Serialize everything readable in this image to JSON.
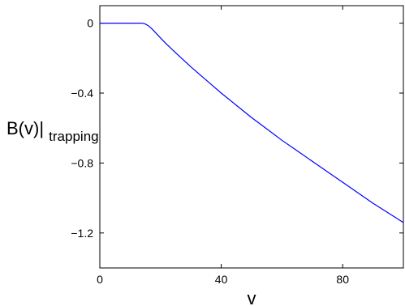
{
  "chart_data": {
    "type": "line",
    "title": "",
    "xlabel": "v",
    "ylabel_main": "B(v)|",
    "ylabel_sub": "trapping",
    "xlim": [
      0,
      100
    ],
    "ylim": [
      -1.4,
      0.1
    ],
    "xticks": [
      0,
      40,
      80
    ],
    "xtick_labels": [
      "0",
      "40",
      "80"
    ],
    "yticks": [
      0,
      -0.4,
      -0.8,
      -1.2
    ],
    "ytick_labels": [
      "0",
      "−0.4",
      "−0.8",
      "−1.2"
    ],
    "grid": false,
    "legend": "none",
    "series": [
      {
        "color": "#0000ff",
        "x": [
          0,
          5,
          10,
          14,
          15,
          16,
          17,
          18,
          20,
          22,
          25,
          30,
          35,
          40,
          45,
          50,
          55,
          60,
          65,
          70,
          75,
          80,
          85,
          90,
          95,
          100
        ],
        "y": [
          0,
          0,
          0,
          0,
          -0.005,
          -0.015,
          -0.03,
          -0.048,
          -0.085,
          -0.12,
          -0.17,
          -0.25,
          -0.325,
          -0.4,
          -0.47,
          -0.54,
          -0.605,
          -0.67,
          -0.73,
          -0.79,
          -0.85,
          -0.91,
          -0.97,
          -1.03,
          -1.085,
          -1.14
        ]
      }
    ]
  }
}
